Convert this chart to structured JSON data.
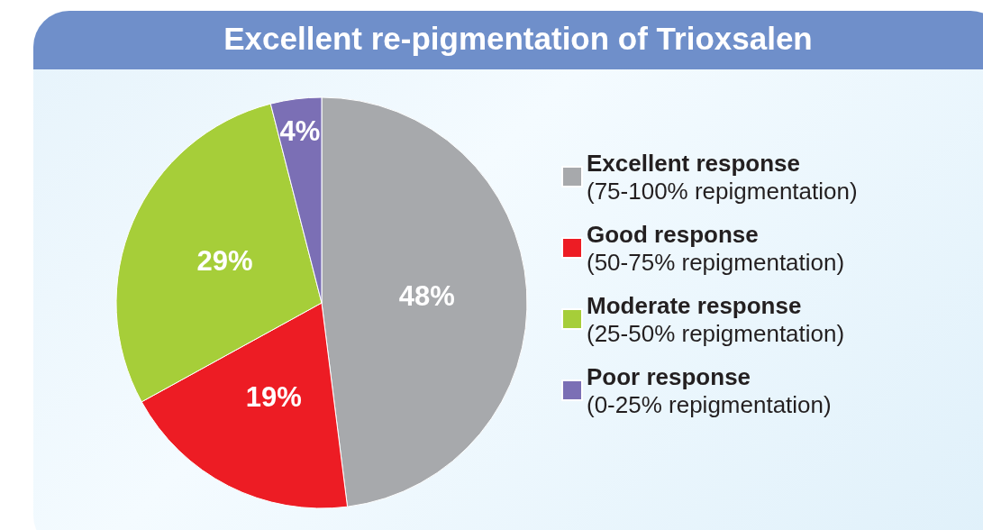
{
  "chart_data": {
    "type": "pie",
    "title": "Excellent re-pigmentation of Trioxsalen",
    "categories": [
      "Excellent response\n(75-100% repigmentation)",
      "Good response\n(50-75% repigmentation)",
      "Moderate response\n(25-50% repigmentation)",
      "Poor response\n(0-25% repigmentation)"
    ],
    "values": [
      48,
      19,
      29,
      4
    ],
    "colors": [
      "#a7a9ac",
      "#ed1c24",
      "#a6ce39",
      "#7b6fb5"
    ],
    "value_labels": [
      "48%",
      "19%",
      "29%",
      "4%"
    ],
    "legend": "right"
  }
}
